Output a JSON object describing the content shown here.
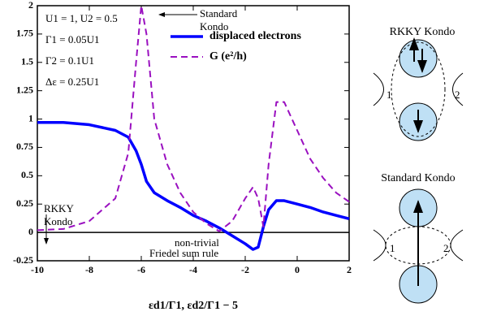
{
  "chart_data": {
    "type": "line",
    "x_label": "εd1/Γ1,  εd2/Γ1 − 5",
    "x": [
      -10,
      -9,
      -8,
      -7,
      -6.5,
      -6.2,
      -6,
      -5.8,
      -5.5,
      -5,
      -4.5,
      -4,
      -3.5,
      -3,
      -2.5,
      -2,
      -1.7,
      -1.5,
      -1.3,
      -1.1,
      -0.8,
      -0.5,
      0,
      0.5,
      1,
      1.5,
      2
    ],
    "series": [
      {
        "name": "displaced electrons",
        "color": "#0000ff",
        "dashed": false,
        "values": [
          0.97,
          0.97,
          0.95,
          0.9,
          0.84,
          0.72,
          0.6,
          0.45,
          0.35,
          0.28,
          0.22,
          0.15,
          0.1,
          0.04,
          -0.03,
          -0.1,
          -0.15,
          -0.13,
          0.05,
          0.2,
          0.28,
          0.28,
          0.25,
          0.22,
          0.18,
          0.15,
          0.12
        ]
      },
      {
        "name": "G (e²/h)",
        "color": "#9a10c0",
        "dashed": true,
        "values": [
          0.02,
          0.03,
          0.1,
          0.3,
          0.7,
          1.5,
          2.0,
          1.75,
          1.0,
          0.6,
          0.35,
          0.18,
          0.08,
          0.01,
          0.1,
          0.3,
          0.4,
          0.3,
          0.05,
          0.6,
          1.15,
          1.15,
          0.9,
          0.65,
          0.48,
          0.35,
          0.27
        ]
      }
    ],
    "xlim": [
      -10,
      2
    ],
    "xticks": [
      -10,
      -8,
      -6,
      -4,
      -2,
      0,
      2
    ],
    "ylim": [
      -0.25,
      2
    ],
    "yticks": [
      -0.25,
      0,
      0.25,
      0.5,
      0.75,
      1,
      1.25,
      1.5,
      1.75,
      2
    ],
    "parameters": [
      "U1 = 1, U2 = 0.5",
      "Γ1 = 0.05U1",
      "Γ2 = 0.1U1",
      "Δε = 0.25U1"
    ],
    "annotations": {
      "standard_kondo": [
        "Standard",
        "Kondo"
      ],
      "rkky_kondo": [
        "RKKY",
        "Kondo"
      ],
      "friedel": [
        "non-trivial",
        "Friedel sum rule"
      ]
    }
  },
  "diagrams": {
    "top": {
      "title": "RKKY Kondo",
      "lead_left": "1",
      "lead_right": "2"
    },
    "bottom": {
      "title": "Standard Kondo",
      "lead_left": "1",
      "lead_right": "2"
    }
  }
}
